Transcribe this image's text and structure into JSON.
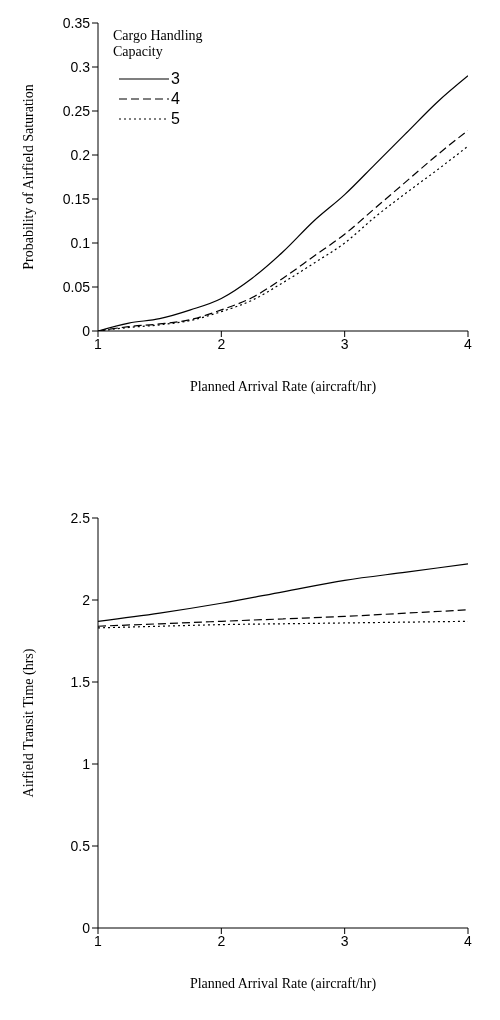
{
  "chart_data": [
    {
      "type": "line",
      "xlabel": "Planned Arrival Rate (aircraft/hr)",
      "ylabel": "Probability of Airfield Saturation",
      "legend_title": "Cargo Handling Capacity",
      "legend": "top left",
      "grid": false,
      "marker": "none",
      "x": [
        1,
        1.25,
        1.5,
        1.75,
        2,
        2.25,
        2.5,
        2.75,
        3,
        3.25,
        3.5,
        3.75,
        4
      ],
      "xlim": [
        1,
        4
      ],
      "xticks": [
        1,
        2,
        3,
        4
      ],
      "ylim": [
        0,
        0.35
      ],
      "yticks": [
        0,
        0.05,
        0.1,
        0.15,
        0.2,
        0.25,
        0.3,
        0.35
      ],
      "series": [
        {
          "name": "3",
          "color": "#000000",
          "line_style": "solid",
          "values": [
            0,
            0.009,
            0.014,
            0.024,
            0.037,
            0.06,
            0.09,
            0.125,
            0.155,
            0.19,
            0.225,
            0.26,
            0.29
          ]
        },
        {
          "name": "4",
          "color": "#000000",
          "line_style": "dashed",
          "values": [
            0,
            0.005,
            0.008,
            0.013,
            0.024,
            0.038,
            0.06,
            0.085,
            0.11,
            0.14,
            0.17,
            0.2,
            0.228
          ]
        },
        {
          "name": "5",
          "color": "#000000",
          "line_style": "dotted",
          "values": [
            0,
            0.004,
            0.007,
            0.012,
            0.022,
            0.035,
            0.055,
            0.077,
            0.1,
            0.13,
            0.157,
            0.183,
            0.21
          ]
        }
      ]
    },
    {
      "type": "line",
      "xlabel": "Planned Arrival Rate (aircraft/hr)",
      "ylabel": "Airfield Transit Time (hrs)",
      "legend": false,
      "grid": false,
      "marker": "none",
      "x": [
        1,
        1.5,
        2,
        2.5,
        3,
        3.5,
        4
      ],
      "xlim": [
        1,
        4
      ],
      "xticks": [
        1,
        2,
        3,
        4
      ],
      "ylim": [
        0,
        2.5
      ],
      "yticks": [
        0,
        0.5,
        1,
        1.5,
        2,
        2.5
      ],
      "series": [
        {
          "color": "#000000",
          "line_style": "solid",
          "values": [
            1.87,
            1.92,
            1.98,
            2.05,
            2.12,
            2.17,
            2.22
          ]
        },
        {
          "color": "#000000",
          "line_style": "dashed",
          "values": [
            1.84,
            1.855,
            1.87,
            1.885,
            1.9,
            1.92,
            1.94
          ]
        },
        {
          "color": "#000000",
          "line_style": "dotted",
          "values": [
            1.83,
            1.84,
            1.85,
            1.855,
            1.86,
            1.865,
            1.87
          ]
        }
      ]
    }
  ]
}
